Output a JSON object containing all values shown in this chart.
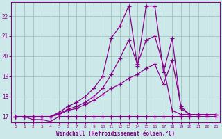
{
  "bg_color": "#cce8e8",
  "line_color": "#880088",
  "grid_color": "#99bbbb",
  "xlabel": "Windchill (Refroidissement éolien,°C)",
  "xlabel_color": "#880088",
  "tick_color": "#880088",
  "xlim": [
    -0.5,
    23.5
  ],
  "ylim": [
    16.7,
    22.7
  ],
  "yticks": [
    17,
    18,
    19,
    20,
    21,
    22
  ],
  "xticks": [
    0,
    1,
    2,
    3,
    4,
    5,
    6,
    7,
    8,
    9,
    10,
    11,
    12,
    13,
    14,
    15,
    16,
    17,
    18,
    19,
    20,
    21,
    22,
    23
  ],
  "series": [
    {
      "x": [
        0,
        1,
        2,
        3,
        4,
        5,
        6,
        7,
        8,
        9,
        10,
        11,
        12,
        13,
        14,
        15,
        16,
        17,
        18,
        19,
        20,
        21,
        22,
        23
      ],
      "y": [
        17.0,
        17.0,
        16.85,
        16.85,
        16.75,
        17.0,
        17.0,
        17.0,
        17.0,
        17.0,
        17.0,
        17.0,
        17.0,
        17.0,
        17.0,
        17.0,
        17.0,
        17.0,
        17.0,
        17.0,
        17.0,
        17.0,
        17.0,
        17.0
      ]
    },
    {
      "x": [
        0,
        1,
        2,
        3,
        4,
        5,
        6,
        7,
        8,
        9,
        10,
        11,
        12,
        13,
        14,
        15,
        16,
        17,
        18,
        19,
        20,
        21,
        22,
        23
      ],
      "y": [
        17.0,
        17.0,
        17.0,
        17.0,
        17.0,
        17.1,
        17.3,
        17.4,
        17.6,
        17.8,
        18.1,
        18.4,
        18.6,
        18.9,
        19.1,
        19.4,
        19.6,
        18.6,
        19.8,
        17.5,
        17.1,
        17.1,
        17.1,
        17.1
      ]
    },
    {
      "x": [
        0,
        1,
        2,
        3,
        4,
        5,
        6,
        7,
        8,
        9,
        10,
        11,
        12,
        13,
        14,
        15,
        16,
        17,
        18,
        19,
        20,
        21,
        22,
        23
      ],
      "y": [
        17.0,
        17.0,
        17.0,
        17.0,
        17.0,
        17.15,
        17.35,
        17.5,
        17.7,
        18.0,
        18.4,
        19.1,
        19.9,
        20.8,
        19.6,
        20.8,
        21.0,
        19.5,
        17.3,
        17.1,
        17.1,
        17.1,
        17.1,
        17.1
      ]
    },
    {
      "x": [
        0,
        1,
        2,
        3,
        4,
        5,
        6,
        7,
        8,
        9,
        10,
        11,
        12,
        13,
        14,
        15,
        16,
        17,
        18,
        19,
        20,
        21,
        22,
        23
      ],
      "y": [
        17.0,
        17.0,
        17.0,
        17.0,
        17.0,
        17.2,
        17.5,
        17.7,
        18.0,
        18.4,
        19.0,
        20.9,
        21.5,
        22.5,
        19.5,
        22.5,
        22.5,
        19.2,
        20.9,
        17.4,
        17.1,
        17.1,
        17.1,
        17.1
      ]
    }
  ]
}
